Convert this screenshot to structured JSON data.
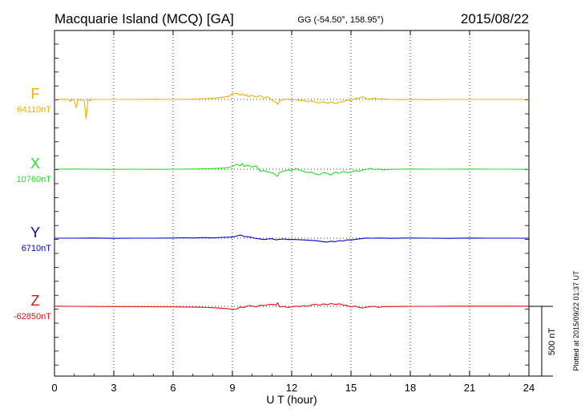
{
  "chart_data": {
    "type": "line",
    "title": "Macquarie Island (MCQ)  [GA]",
    "coords": "GG (-54.50°, 158.95°)",
    "date": "2015/08/22",
    "xlabel": "U T (hour)",
    "xlim": [
      0,
      24
    ],
    "xticks": [
      0,
      3,
      6,
      9,
      12,
      15,
      18,
      21,
      24
    ],
    "scale_label": "500 nT",
    "plotted_note": "Plotted at 2015/09/22 01:37 UT",
    "grid": true,
    "series": [
      {
        "name": "F",
        "baseline": "64110nT",
        "color": "#f0b000",
        "x": [
          0,
          0.5,
          0.7,
          0.8,
          0.9,
          1.0,
          1.1,
          1.2,
          1.4,
          1.5,
          1.6,
          1.7,
          1.8,
          1.9,
          2.0,
          3,
          4,
          5,
          6,
          7,
          7.5,
          8,
          8.5,
          8.8,
          9.0,
          9.2,
          9.4,
          9.5,
          9.6,
          9.7,
          9.8,
          9.9,
          10.0,
          10.2,
          10.4,
          10.6,
          10.8,
          11.0,
          11.1,
          11.2,
          11.3,
          11.4,
          11.6,
          11.8,
          12.0,
          12.2,
          12.4,
          12.6,
          12.8,
          13.0,
          13.2,
          13.4,
          13.6,
          13.8,
          14.0,
          14.2,
          14.4,
          14.6,
          14.8,
          15.0,
          15.2,
          15.4,
          15.6,
          15.8,
          16.0,
          16.2,
          16.4,
          16.6,
          16.8,
          17,
          17.5,
          18,
          19,
          20,
          21,
          22,
          23,
          24
        ],
        "y": [
          0,
          2,
          0,
          -15,
          0,
          -4,
          -58,
          0,
          -5,
          0,
          -140,
          0,
          -10,
          0,
          0,
          0,
          0,
          1,
          0,
          2,
          4,
          8,
          16,
          22,
          40,
          45,
          30,
          40,
          28,
          35,
          20,
          25,
          30,
          15,
          28,
          10,
          20,
          -5,
          -15,
          -20,
          -35,
          -5,
          -2,
          5,
          -5,
          0,
          -8,
          -5,
          -18,
          -10,
          -20,
          -25,
          -15,
          -28,
          -18,
          -30,
          -20,
          -15,
          -5,
          -8,
          5,
          10,
          20,
          5,
          2,
          10,
          0,
          4,
          2,
          0,
          -1,
          0,
          -1,
          0,
          0,
          0,
          0,
          0
        ]
      },
      {
        "name": "X",
        "baseline": "10760nT",
        "color": "#20e020",
        "x": [
          0,
          1,
          2,
          3,
          4,
          5,
          6,
          7,
          8,
          8.5,
          8.8,
          9.0,
          9.2,
          9.4,
          9.5,
          9.6,
          9.8,
          10.0,
          10.2,
          10.4,
          10.6,
          10.8,
          11.0,
          11.1,
          11.2,
          11.3,
          11.35,
          11.4,
          11.6,
          11.8,
          12.0,
          12.2,
          12.4,
          12.6,
          12.8,
          13.0,
          13.2,
          13.4,
          13.6,
          13.8,
          14.0,
          14.2,
          14.4,
          14.6,
          14.8,
          15.0,
          15.2,
          15.4,
          15.6,
          15.8,
          16.0,
          16.2,
          16.4,
          16.6,
          16.8,
          17,
          17.5,
          18,
          19,
          20,
          21,
          22,
          23,
          24
        ],
        "y": [
          0,
          1,
          0,
          -1,
          0,
          -1,
          0,
          1,
          4,
          8,
          12,
          20,
          35,
          25,
          40,
          20,
          30,
          15,
          25,
          -15,
          -10,
          -20,
          -25,
          -30,
          -45,
          -50,
          -30,
          -20,
          -15,
          -5,
          -10,
          5,
          -8,
          -15,
          -25,
          -20,
          -35,
          -40,
          -25,
          -30,
          -42,
          -20,
          -30,
          -15,
          -25,
          -22,
          -10,
          -15,
          -5,
          0,
          5,
          -3,
          2,
          -5,
          -3,
          -2,
          0,
          1,
          0,
          0,
          1,
          0,
          0,
          -1
        ]
      },
      {
        "name": "Y",
        "baseline": "6710nT",
        "color": "#0000d0",
        "x": [
          0,
          1,
          2,
          3,
          4,
          5,
          6,
          6.5,
          7,
          7.5,
          8,
          8.5,
          9,
          9.2,
          9.4,
          9.6,
          9.8,
          10.0,
          10.2,
          10.4,
          10.6,
          10.8,
          11.0,
          11.2,
          11.4,
          11.6,
          11.8,
          12.0,
          12.4,
          12.8,
          13.2,
          13.6,
          13.8,
          14.0,
          14.2,
          14.4,
          14.6,
          14.8,
          15.0,
          15.2,
          15.4,
          15.6,
          15.8,
          16,
          16.5,
          17,
          18,
          19,
          20,
          21,
          22,
          23,
          24
        ],
        "y": [
          0,
          0,
          1,
          -1,
          0,
          0,
          1,
          3,
          1,
          4,
          2,
          6,
          8,
          15,
          22,
          12,
          10,
          5,
          -3,
          -5,
          -10,
          -6,
          -4,
          -12,
          -8,
          -6,
          -10,
          -9,
          -11,
          -14,
          -18,
          -25,
          -28,
          -22,
          -25,
          -18,
          -20,
          -12,
          -14,
          -9,
          -5,
          -2,
          1,
          0,
          1,
          -1,
          1,
          0,
          -1,
          1,
          0,
          0,
          0
        ]
      },
      {
        "name": "Z",
        "baseline": "-62850nT",
        "color": "#e01010",
        "x": [
          0,
          1,
          2,
          3,
          4,
          5,
          6,
          7,
          7.5,
          8,
          8.5,
          8.8,
          9.0,
          9.2,
          9.4,
          9.6,
          9.8,
          10.0,
          10.2,
          10.4,
          10.6,
          10.8,
          11.0,
          11.2,
          11.3,
          11.35,
          11.4,
          11.6,
          11.8,
          12.0,
          12.2,
          12.4,
          12.6,
          12.8,
          13.0,
          13.2,
          13.4,
          13.6,
          13.8,
          14.0,
          14.2,
          14.4,
          14.6,
          14.8,
          15.0,
          15.2,
          15.4,
          15.6,
          15.8,
          16.0,
          16.2,
          16.4,
          16.6,
          16.8,
          17,
          17.5,
          18,
          19,
          20,
          21,
          22,
          23,
          24
        ],
        "y": [
          1,
          0,
          -1,
          -2,
          -2,
          -3,
          -4,
          -5,
          -7,
          -10,
          -14,
          -18,
          -22,
          -20,
          -5,
          -8,
          5,
          2,
          -4,
          8,
          5,
          12,
          15,
          10,
          25,
          5,
          -5,
          0,
          -8,
          -4,
          2,
          -2,
          5,
          0,
          10,
          15,
          8,
          18,
          12,
          20,
          14,
          18,
          10,
          5,
          -4,
          2,
          -8,
          -12,
          -5,
          -2,
          0,
          -8,
          -3,
          -2,
          -2,
          -1,
          0,
          0,
          1,
          1,
          1,
          1,
          1
        ]
      }
    ]
  }
}
